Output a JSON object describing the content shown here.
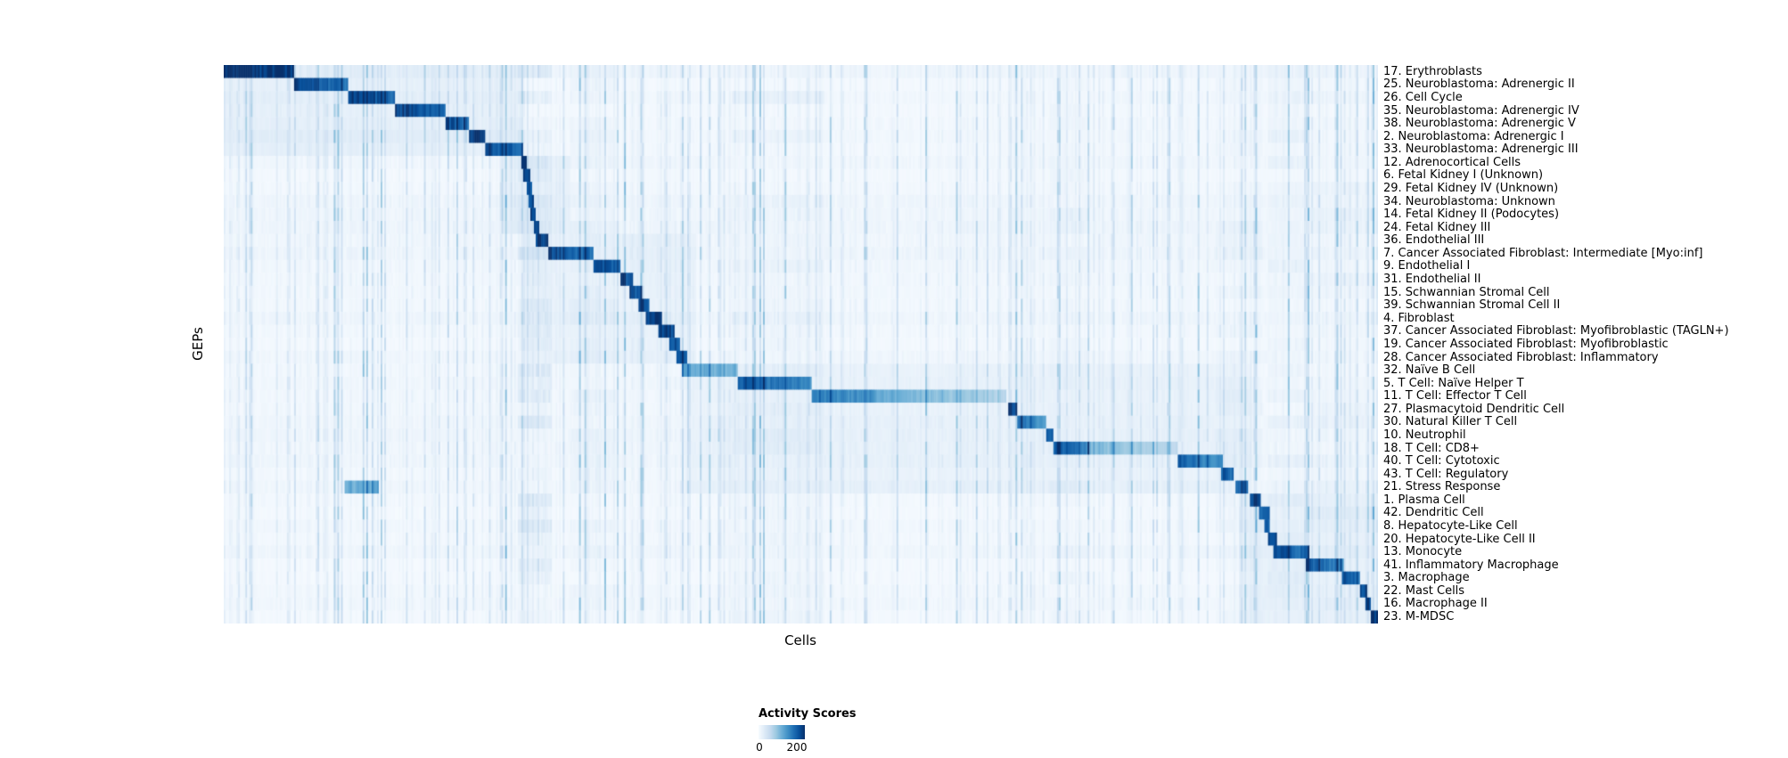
{
  "chart_data": {
    "type": "heatmap",
    "xlabel": "Cells",
    "ylabel": "GEPs",
    "colormap": "Blues",
    "color_stops": [
      "#f7fbff",
      "#deebf7",
      "#c6dbef",
      "#9ecae1",
      "#6baed6",
      "#4292c6",
      "#2171b5",
      "#08519c",
      "#08306b"
    ],
    "legend": {
      "title": "Activity Scores",
      "min_label": "0",
      "max_label": "200",
      "min": 0,
      "max": 200
    },
    "value_note": "block values are normalized activity, 1.0 = 200+ activity score",
    "column_bands": [
      {
        "s": 0.255,
        "e": 0.285,
        "v": 0.16
      },
      {
        "s": 0.3,
        "e": 0.34,
        "v": 0.05
      },
      {
        "s": 0.44,
        "e": 0.52,
        "v": 0.05
      },
      {
        "s": 0.715,
        "e": 0.75,
        "v": 0.05
      },
      {
        "s": 0.86,
        "e": 0.9,
        "v": 0.05
      },
      {
        "s": 0.905,
        "e": 0.94,
        "v": 0.06
      },
      {
        "s": 0.94,
        "e": 1.0,
        "v": 0.05
      }
    ],
    "rows": [
      {
        "label": "17. Erythroblasts",
        "blocks": [
          {
            "s": 0.0,
            "e": 0.061,
            "v": 1.0,
            "f": 0.1
          },
          {
            "s": 0.0,
            "e": 0.26,
            "v": 0.07
          }
        ]
      },
      {
        "label": "25. Neuroblastoma: Adrenergic II",
        "blocks": [
          {
            "s": 0.061,
            "e": 0.108,
            "v": 0.95,
            "f": 0.25
          },
          {
            "s": 0.0,
            "e": 0.26,
            "v": 0.07
          }
        ]
      },
      {
        "label": "26. Cell Cycle",
        "blocks": [
          {
            "s": 0.108,
            "e": 0.148,
            "v": 0.95,
            "f": 0.2
          },
          {
            "s": 0.0,
            "e": 0.26,
            "v": 0.07
          },
          {
            "s": 0.44,
            "e": 0.52,
            "v": 0.05
          }
        ]
      },
      {
        "label": "35. Neuroblastoma: Adrenergic IV",
        "blocks": [
          {
            "s": 0.148,
            "e": 0.192,
            "v": 0.95,
            "f": 0.2
          },
          {
            "s": 0.0,
            "e": 0.26,
            "v": 0.07
          }
        ]
      },
      {
        "label": "38. Neuroblastoma: Adrenergic V",
        "blocks": [
          {
            "s": 0.192,
            "e": 0.213,
            "v": 0.9,
            "f": 0.15
          },
          {
            "s": 0.0,
            "e": 0.26,
            "v": 0.07
          }
        ]
      },
      {
        "label": "2. Neuroblastoma: Adrenergic I",
        "blocks": [
          {
            "s": 0.213,
            "e": 0.227,
            "v": 0.95
          },
          {
            "s": 0.0,
            "e": 0.26,
            "v": 0.09
          }
        ]
      },
      {
        "label": "33. Neuroblastoma: Adrenergic III",
        "blocks": [
          {
            "s": 0.227,
            "e": 0.259,
            "v": 0.92,
            "f": 0.25
          },
          {
            "s": 0.0,
            "e": 0.26,
            "v": 0.07
          }
        ]
      },
      {
        "label": "12. Adrenocortical Cells",
        "blocks": [
          {
            "s": 0.258,
            "e": 0.263,
            "v": 0.9
          },
          {
            "s": 0.24,
            "e": 0.3,
            "v": 0.06
          }
        ]
      },
      {
        "label": "6. Fetal Kidney I (Unknown)",
        "blocks": [
          {
            "s": 0.26,
            "e": 0.265,
            "v": 0.85
          },
          {
            "s": 0.24,
            "e": 0.3,
            "v": 0.06
          }
        ]
      },
      {
        "label": "29. Fetal Kidney IV (Unknown)",
        "blocks": [
          {
            "s": 0.262,
            "e": 0.267,
            "v": 0.85
          },
          {
            "s": 0.24,
            "e": 0.3,
            "v": 0.06
          }
        ]
      },
      {
        "label": "34. Neuroblastoma: Unknown",
        "blocks": [
          {
            "s": 0.264,
            "e": 0.269,
            "v": 0.8
          },
          {
            "s": 0.24,
            "e": 0.3,
            "v": 0.06
          }
        ]
      },
      {
        "label": "14. Fetal Kidney II (Podocytes)",
        "blocks": [
          {
            "s": 0.266,
            "e": 0.271,
            "v": 0.85
          },
          {
            "s": 0.24,
            "e": 0.3,
            "v": 0.06
          }
        ]
      },
      {
        "label": "24. Fetal Kidney III",
        "blocks": [
          {
            "s": 0.268,
            "e": 0.273,
            "v": 0.85
          },
          {
            "s": 0.24,
            "e": 0.3,
            "v": 0.06
          }
        ]
      },
      {
        "label": "36. Endothelial III",
        "blocks": [
          {
            "s": 0.271,
            "e": 0.281,
            "v": 0.9
          },
          {
            "s": 0.26,
            "e": 0.41,
            "v": 0.05
          }
        ]
      },
      {
        "label": "7. Cancer Associated Fibroblast: Intermediate [Myo:inf]",
        "blocks": [
          {
            "s": 0.281,
            "e": 0.32,
            "v": 0.9,
            "f": 0.2
          },
          {
            "s": 0.26,
            "e": 0.41,
            "v": 0.05
          }
        ]
      },
      {
        "label": "9. Endothelial I",
        "blocks": [
          {
            "s": 0.32,
            "e": 0.344,
            "v": 0.92,
            "f": 0.2
          },
          {
            "s": 0.26,
            "e": 0.41,
            "v": 0.05
          }
        ]
      },
      {
        "label": "31. Endothelial II",
        "blocks": [
          {
            "s": 0.344,
            "e": 0.355,
            "v": 0.9
          },
          {
            "s": 0.26,
            "e": 0.41,
            "v": 0.05
          }
        ]
      },
      {
        "label": "15. Schwannian Stromal Cell",
        "blocks": [
          {
            "s": 0.352,
            "e": 0.362,
            "v": 0.88
          },
          {
            "s": 0.26,
            "e": 0.41,
            "v": 0.05
          }
        ]
      },
      {
        "label": "39. Schwannian Stromal Cell II",
        "blocks": [
          {
            "s": 0.359,
            "e": 0.368,
            "v": 0.85
          },
          {
            "s": 0.26,
            "e": 0.41,
            "v": 0.05
          }
        ]
      },
      {
        "label": "4. Fibroblast",
        "blocks": [
          {
            "s": 0.366,
            "e": 0.38,
            "v": 0.9
          },
          {
            "s": 0.26,
            "e": 0.41,
            "v": 0.05
          }
        ]
      },
      {
        "label": "37. Cancer Associated Fibroblast: Myofibroblastic (TAGLN+)",
        "blocks": [
          {
            "s": 0.377,
            "e": 0.39,
            "v": 0.9
          },
          {
            "s": 0.26,
            "e": 0.41,
            "v": 0.05
          }
        ]
      },
      {
        "label": "19. Cancer Associated Fibroblast: Myofibroblastic",
        "blocks": [
          {
            "s": 0.386,
            "e": 0.396,
            "v": 0.88
          },
          {
            "s": 0.26,
            "e": 0.41,
            "v": 0.05
          }
        ]
      },
      {
        "label": "28. Cancer Associated Fibroblast: Inflammatory",
        "blocks": [
          {
            "s": 0.392,
            "e": 0.401,
            "v": 0.85
          },
          {
            "s": 0.26,
            "e": 0.41,
            "v": 0.05
          }
        ]
      },
      {
        "label": "32. Naïve B Cell",
        "blocks": [
          {
            "s": 0.397,
            "e": 0.446,
            "v": 0.55,
            "f": 0.3
          },
          {
            "s": 0.4,
            "e": 0.89,
            "v": 0.045
          }
        ]
      },
      {
        "label": "5. T Cell: Naïve Helper T",
        "blocks": [
          {
            "s": 0.446,
            "e": 0.51,
            "v": 0.85,
            "f": 0.3
          },
          {
            "s": 0.4,
            "e": 0.89,
            "v": 0.045
          }
        ]
      },
      {
        "label": "11. T Cell: Effector T Cell",
        "blocks": [
          {
            "s": 0.51,
            "e": 0.565,
            "v": 0.7,
            "f": 0.15
          },
          {
            "s": 0.565,
            "e": 0.678,
            "v": 0.5,
            "f": 0.5
          },
          {
            "s": 0.4,
            "e": 0.89,
            "v": 0.045
          }
        ]
      },
      {
        "label": "27. Plasmacytoid Dendritic Cell",
        "blocks": [
          {
            "s": 0.68,
            "e": 0.687,
            "v": 0.9
          },
          {
            "s": 0.4,
            "e": 0.89,
            "v": 0.045
          }
        ]
      },
      {
        "label": "30. Natural Killer T Cell",
        "blocks": [
          {
            "s": 0.687,
            "e": 0.712,
            "v": 0.75,
            "f": 0.3
          },
          {
            "s": 0.4,
            "e": 0.89,
            "v": 0.045
          }
        ]
      },
      {
        "label": "10. Neutrophil",
        "blocks": [
          {
            "s": 0.712,
            "e": 0.719,
            "v": 0.85
          },
          {
            "s": 0.4,
            "e": 0.89,
            "v": 0.045
          }
        ]
      },
      {
        "label": "18. T Cell: CD8+",
        "blocks": [
          {
            "s": 0.719,
            "e": 0.75,
            "v": 0.8,
            "f": 0.2
          },
          {
            "s": 0.75,
            "e": 0.826,
            "v": 0.42,
            "f": 0.5
          },
          {
            "s": 0.4,
            "e": 0.89,
            "v": 0.045
          }
        ]
      },
      {
        "label": "40. T Cell: Cytotoxic",
        "blocks": [
          {
            "s": 0.826,
            "e": 0.866,
            "v": 0.8,
            "f": 0.3
          },
          {
            "s": 0.4,
            "e": 0.89,
            "v": 0.045
          }
        ]
      },
      {
        "label": "43. T Cell: Regulatory",
        "blocks": [
          {
            "s": 0.864,
            "e": 0.875,
            "v": 0.8
          },
          {
            "s": 0.4,
            "e": 0.89,
            "v": 0.045
          }
        ]
      },
      {
        "label": "21. Stress Response",
        "blocks": [
          {
            "s": 0.877,
            "e": 0.887,
            "v": 0.8
          },
          {
            "s": 0.105,
            "e": 0.135,
            "v": 0.5
          },
          {
            "s": 0.4,
            "e": 0.89,
            "v": 0.05
          }
        ]
      },
      {
        "label": "1. Plasma Cell",
        "blocks": [
          {
            "s": 0.889,
            "e": 0.899,
            "v": 0.85
          },
          {
            "s": 0.88,
            "e": 1.0,
            "v": 0.06
          }
        ]
      },
      {
        "label": "42. Dendritic Cell",
        "blocks": [
          {
            "s": 0.897,
            "e": 0.907,
            "v": 0.8
          },
          {
            "s": 0.88,
            "e": 1.0,
            "v": 0.06
          }
        ]
      },
      {
        "label": "8. Hepatocyte-Like Cell",
        "blocks": [
          {
            "s": 0.901,
            "e": 0.907,
            "v": 0.8
          },
          {
            "s": 0.88,
            "e": 1.0,
            "v": 0.06
          }
        ]
      },
      {
        "label": "20. Hepatocyte-Like Cell II",
        "blocks": [
          {
            "s": 0.905,
            "e": 0.912,
            "v": 0.85
          },
          {
            "s": 0.88,
            "e": 1.0,
            "v": 0.06
          }
        ]
      },
      {
        "label": "13. Monocyte",
        "blocks": [
          {
            "s": 0.91,
            "e": 0.94,
            "v": 0.9,
            "f": 0.25
          },
          {
            "s": 0.88,
            "e": 1.0,
            "v": 0.06
          }
        ]
      },
      {
        "label": "41. Inflammatory Macrophage",
        "blocks": [
          {
            "s": 0.938,
            "e": 0.97,
            "v": 0.85,
            "f": 0.25
          },
          {
            "s": 0.88,
            "e": 1.0,
            "v": 0.06
          }
        ]
      },
      {
        "label": "3. Macrophage",
        "blocks": [
          {
            "s": 0.968,
            "e": 0.984,
            "v": 0.85,
            "f": 0.15
          },
          {
            "s": 0.88,
            "e": 1.0,
            "v": 0.06
          }
        ]
      },
      {
        "label": "22. Mast Cells",
        "blocks": [
          {
            "s": 0.985,
            "e": 0.99,
            "v": 0.9
          },
          {
            "s": 0.88,
            "e": 1.0,
            "v": 0.06
          }
        ]
      },
      {
        "label": "16. Macrophage II",
        "blocks": [
          {
            "s": 0.989,
            "e": 0.994,
            "v": 0.8
          },
          {
            "s": 0.88,
            "e": 1.0,
            "v": 0.06
          }
        ]
      },
      {
        "label": "23. M-MDSC",
        "blocks": [
          {
            "s": 0.994,
            "e": 1.0,
            "v": 0.95
          },
          {
            "s": 0.88,
            "e": 1.0,
            "v": 0.06
          }
        ]
      }
    ]
  }
}
